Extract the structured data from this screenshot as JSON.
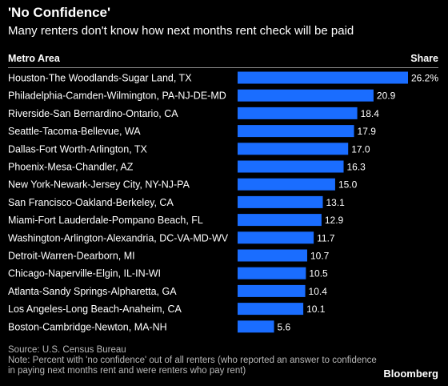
{
  "title": "'No Confidence'",
  "subtitle": "Many renters don't know how next months rent check will be paid",
  "columns": {
    "left": "Metro Area",
    "right": "Share"
  },
  "source": "Source: U.S. Census Bureau",
  "note": "Note: Percent with 'no confidence' out of all renters (who reported an answer to confidence in paying next months rent and were renters who pay rent)",
  "brand": "Bloomberg",
  "colors": {
    "bar": "#1a6dff",
    "background": "#000000",
    "text": "#ffffff"
  },
  "chart_data": {
    "type": "bar",
    "orientation": "horizontal",
    "categories": [
      "Houston-The Woodlands-Sugar Land, TX",
      "Philadelphia-Camden-Wilmington, PA-NJ-DE-MD",
      "Riverside-San Bernardino-Ontario, CA",
      "Seattle-Tacoma-Bellevue, WA",
      "Dallas-Fort Worth-Arlington, TX",
      "Phoenix-Mesa-Chandler, AZ",
      "New York-Newark-Jersey City, NY-NJ-PA",
      "San Francisco-Oakland-Berkeley, CA",
      "Miami-Fort Lauderdale-Pompano Beach, FL",
      "Washington-Arlington-Alexandria, DC-VA-MD-WV",
      "Detroit-Warren-Dearborn, MI",
      "Chicago-Naperville-Elgin, IL-IN-WI",
      "Atlanta-Sandy Springs-Alpharetta, GA",
      "Los Angeles-Long Beach-Anaheim, CA",
      "Boston-Cambridge-Newton, MA-NH"
    ],
    "values": [
      26.2,
      20.9,
      18.4,
      17.9,
      17.0,
      16.3,
      15.0,
      13.1,
      12.9,
      11.7,
      10.7,
      10.5,
      10.4,
      10.1,
      5.6
    ],
    "value_labels": [
      "26.2%",
      "20.9",
      "18.4",
      "17.9",
      "17.0",
      "16.3",
      "15.0",
      "13.1",
      "12.9",
      "11.7",
      "10.7",
      "10.5",
      "10.4",
      "10.1",
      "5.6"
    ],
    "xlim": [
      0,
      26.2
    ],
    "grid": false,
    "legend": false
  }
}
